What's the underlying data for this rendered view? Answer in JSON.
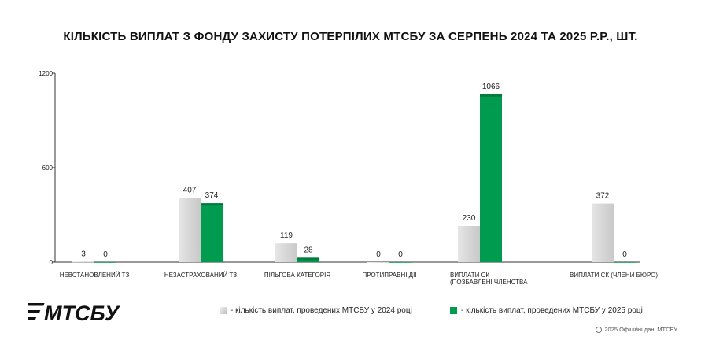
{
  "title": "КІЛЬКІСТЬ ВИПЛАТ З ФОНДУ ЗАХИСТУ ПОТЕРПІЛИХ МТСБУ ЗА СЕРПЕНЬ 2024 ТА 2025 Р.Р., ШТ.",
  "logo_text": "МТСБУ",
  "footer": {
    "text": "2025 Офіційні дані МТСБУ",
    "icon": "copyright-icon"
  },
  "legend": [
    {
      "label": "- кількість виплат, проведених МТСБУ у 2024 році",
      "color": "#d9d9d9"
    },
    {
      "label": "- кількість виплат, проведених МТСБУ у 2025 році",
      "color": "#009b4f"
    }
  ],
  "colors": {
    "series_2024": "#d9d9d9",
    "series_2025": "#009b4f",
    "series_2025_top": "#007a3d",
    "axis": "#333333"
  },
  "chart_data": {
    "type": "bar",
    "title": "КІЛЬКІСТЬ ВИПЛАТ З ФОНДУ ЗАХИСТУ ПОТЕРПІЛИХ МТСБУ ЗА СЕРПЕНЬ 2024 ТА 2025 Р.Р., ШТ.",
    "categories": [
      [
        "НЕВСТАНОВЛЕНИЙ ТЗ"
      ],
      [
        "НЕЗАСТРАХОВАНИЙ ТЗ"
      ],
      [
        "ПІЛЬГОВА КАТЕГОРІЯ"
      ],
      [
        "ПРОТИПРАВНІ ДІЇ"
      ],
      [
        "ВИПЛАТИ СК",
        "(ПОЗБАВЛЕНІ ЧЛЕНСТВА"
      ],
      [
        "ВИПЛАТИ СК (ЧЛЕНИ БЮРО)"
      ]
    ],
    "series": [
      {
        "name": "- кількість виплат, проведених МТСБУ у 2024 році",
        "values": [
          3,
          407,
          119,
          0,
          230,
          372
        ]
      },
      {
        "name": "- кількість виплат, проведених МТСБУ у 2025 році",
        "values": [
          0,
          374,
          28,
          0,
          1066,
          0
        ]
      }
    ],
    "yticks": [
      "0",
      "600",
      "1200"
    ],
    "ylim": [
      0,
      1200
    ],
    "xlabel": "",
    "ylabel": "",
    "grid": false,
    "legend_position": "bottom"
  }
}
